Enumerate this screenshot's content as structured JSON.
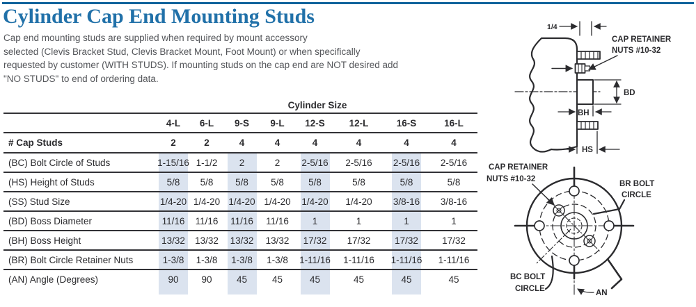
{
  "page_title": "Cylinder Cap End Mounting Studs",
  "intro": {
    "lines": [
      "Cap end mounting studs are supplied when required by mount accessory",
      "selected (Clevis Bracket Stud, Clevis Bracket Mount, Foot Mount) or when specifically",
      "requested by customer (WITH STUDS). If mounting studs on the cap end are NOT desired add",
      "\"NO STUDS\" to end of ordering data."
    ]
  },
  "table": {
    "group_header": "Cylinder Size",
    "columns": [
      "4-L",
      "6-L",
      "9-S",
      "9-L",
      "12-S",
      "12-L",
      "16-S",
      "16-L"
    ],
    "highlighted_columns": [
      0,
      2,
      4,
      6
    ],
    "cap_studs_row": {
      "label": "# Cap Studs",
      "values": [
        "2",
        "2",
        "4",
        "4",
        "4",
        "4",
        "4",
        "4"
      ]
    },
    "rows": [
      {
        "label": "(BC) Bolt Circle of Studs",
        "values": [
          "1-15/16",
          "1-1/2",
          "2",
          "2",
          "2-5/16",
          "2-5/16",
          "2-5/16",
          "2-5/16"
        ]
      },
      {
        "label": "(HS) Height of Studs",
        "values": [
          "5/8",
          "5/8",
          "5/8",
          "5/8",
          "5/8",
          "5/8",
          "5/8",
          "5/8"
        ]
      },
      {
        "label": "(SS) Stud Size",
        "values": [
          "1/4-20",
          "1/4-20",
          "1/4-20",
          "1/4-20",
          "1/4-20",
          "1/4-20",
          "3/8-16",
          "3/8-16"
        ]
      },
      {
        "label": "(BD) Boss Diameter",
        "values": [
          "11/16",
          "11/16",
          "11/16",
          "11/16",
          "1",
          "1",
          "1",
          "1"
        ]
      },
      {
        "label": "(BH) Boss Height",
        "values": [
          "13/32",
          "13/32",
          "13/32",
          "13/32",
          "17/32",
          "17/32",
          "17/32",
          "17/32"
        ]
      },
      {
        "label": "(BR) Bolt Circle Retainer Nuts",
        "values": [
          "1-3/8",
          "1-3/8",
          "1-3/8",
          "1-3/8",
          "1-11/16",
          "1-11/16",
          "1-11/16",
          "1-11/16"
        ]
      },
      {
        "label": "(AN) Angle (Degrees)",
        "values": [
          "90",
          "90",
          "45",
          "45",
          "45",
          "45",
          "45",
          "45"
        ]
      }
    ]
  },
  "diagram": {
    "cap_retainer": {
      "line1": "CAP RETAINER",
      "line2": "NUTS #10-32"
    },
    "dims": {
      "quarter": "1/4",
      "bd": "BD",
      "bh": "BH",
      "hs": "HS",
      "an": "AN"
    },
    "br_circle": {
      "line1": "BR BOLT",
      "line2": "CIRCLE"
    },
    "bc_circle": {
      "line1": "BC BOLT",
      "line2": "CIRCLE"
    }
  },
  "colors": {
    "title_blue": "#2171a9",
    "rule_blue": "#11639c",
    "body_gray": "#54565a",
    "table_ink": "#2b2b2e",
    "table_rule": "#323236",
    "highlight": "#dbe3ef"
  }
}
